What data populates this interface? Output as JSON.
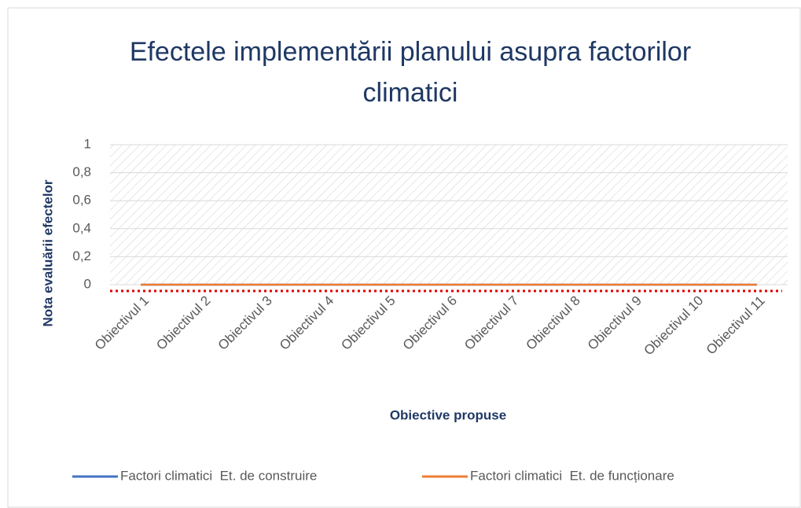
{
  "chart_data": {
    "type": "line",
    "title": "Efectele implementării planului asupra factorilor climatici",
    "x_label": "Obiective propuse",
    "y_label": "Nota evaluării efectelor",
    "categories": [
      "Obiectivul 1",
      "Obiectivul 2",
      "Obiectivul 3",
      "Obiectivul 4",
      "Obiectivul 5",
      "Obiectivul 6",
      "Obiectivul 7",
      "Obiectivul 8",
      "Obiectivul 9",
      "Obiectivul 10",
      "Obiectivul 11"
    ],
    "series": [
      {
        "name": "Factori climatici  Et. de construire",
        "color": "#4472c4",
        "values": [
          0,
          0,
          0,
          0,
          0,
          0,
          0,
          0,
          0,
          0,
          0
        ]
      },
      {
        "name": "Factori climatici  Et. de funcționare",
        "color": "#ed7d31",
        "values": [
          0,
          0,
          0,
          0,
          0,
          0,
          0,
          0,
          0,
          0,
          0
        ]
      }
    ],
    "ylim": [
      0,
      1
    ],
    "yticks": [
      0,
      {
        "value": 0.2,
        "label": "0,2"
      },
      {
        "value": 0.4,
        "label": "0,4"
      },
      {
        "value": 0.6,
        "label": "0,6"
      },
      {
        "value": 0.8,
        "label": "0,8"
      },
      1
    ],
    "grid": true,
    "legend": "bottom"
  }
}
